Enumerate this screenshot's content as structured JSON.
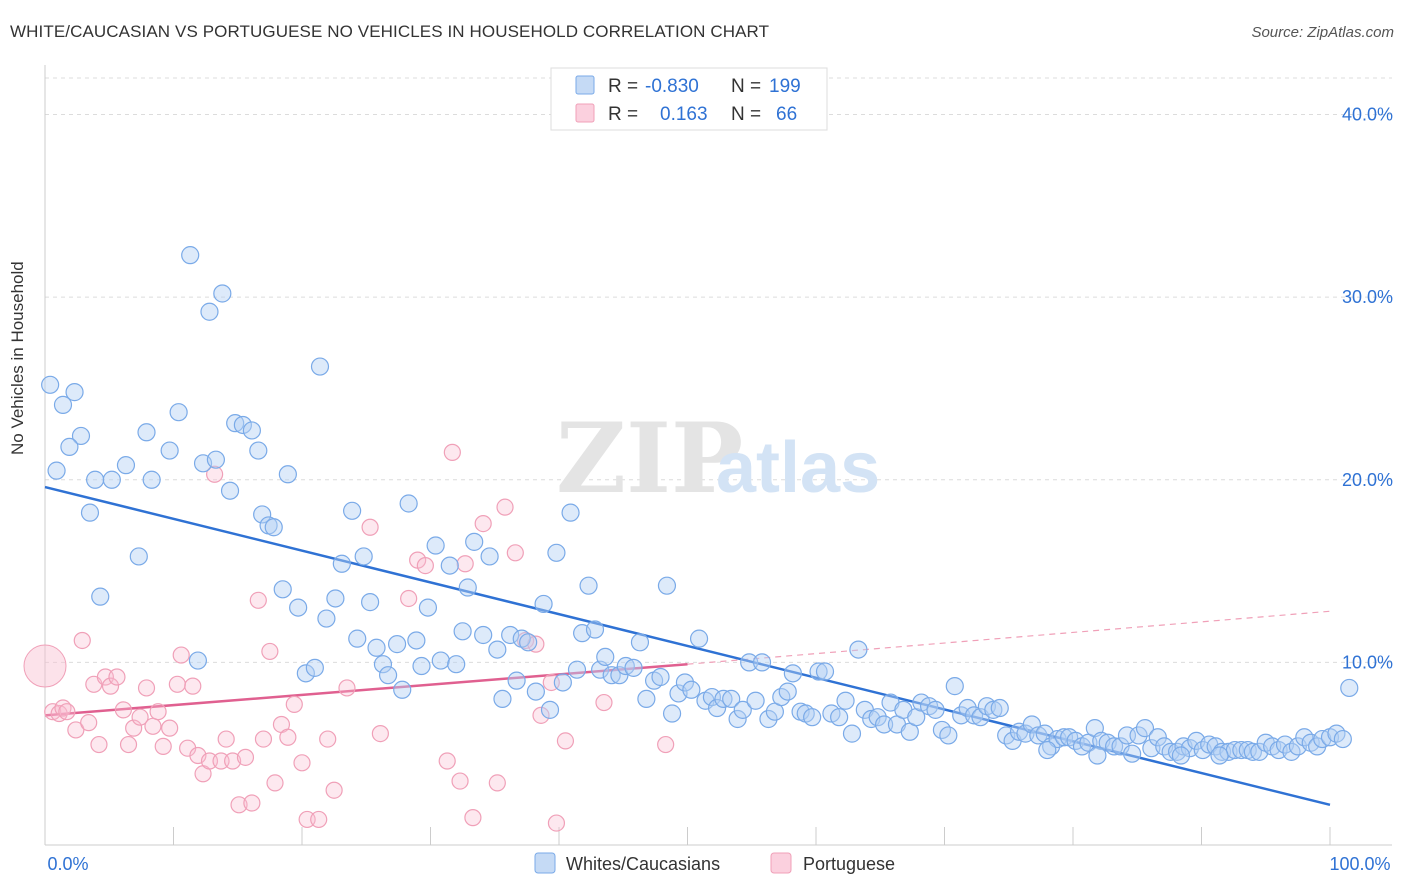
{
  "title": "WHITE/CAUCASIAN VS PORTUGUESE NO VEHICLES IN HOUSEHOLD CORRELATION CHART",
  "source": "Source: ZipAtlas.com",
  "watermark": {
    "zip": "ZIP",
    "atlas": "atlas"
  },
  "legend_top": [
    {
      "r_label": "R =",
      "r_value": "-0.830",
      "n_label": "N =",
      "n_value": "199",
      "color": "#7aaae8"
    },
    {
      "r_label": "R =",
      "r_value": "0.163",
      "n_label": "N =",
      "n_value": "66",
      "color": "#f0a0b8"
    }
  ],
  "legend_bottom": [
    {
      "label": "Whites/Caucasians",
      "color": "#7aaae8"
    },
    {
      "label": "Portuguese",
      "color": "#f0a0b8"
    }
  ],
  "chart_data": {
    "type": "scatter",
    "ylabel": "No Vehicles in Household",
    "xlim": [
      0,
      100
    ],
    "ylim": [
      0,
      42
    ],
    "x_tick_labels": [
      "0.0%",
      "100.0%"
    ],
    "y_ticks": [
      10,
      20,
      30,
      40
    ],
    "y_tick_labels": [
      "10.0%",
      "20.0%",
      "30.0%",
      "40.0%"
    ],
    "grid": true,
    "series": [
      {
        "name": "Whites/Caucasians",
        "color": "#7aaae8",
        "trend": {
          "x": [
            0,
            100
          ],
          "y": [
            19.6,
            2.2
          ],
          "color": "#2f72d4"
        },
        "points": [
          [
            0.4,
            25.2
          ],
          [
            1.4,
            24.1
          ],
          [
            2.3,
            24.8
          ],
          [
            2.8,
            22.4
          ],
          [
            1.9,
            21.8
          ],
          [
            0.9,
            20.5
          ],
          [
            3.9,
            20.0
          ],
          [
            5.2,
            20.0
          ],
          [
            3.5,
            18.2
          ],
          [
            4.3,
            13.6
          ],
          [
            7.3,
            15.8
          ],
          [
            6.3,
            20.8
          ],
          [
            7.9,
            22.6
          ],
          [
            8.3,
            20.0
          ],
          [
            9.7,
            21.6
          ],
          [
            10.4,
            23.7
          ],
          [
            11.3,
            32.3
          ],
          [
            11.9,
            10.1
          ],
          [
            12.3,
            20.9
          ],
          [
            12.8,
            29.2
          ],
          [
            13.3,
            21.1
          ],
          [
            13.8,
            30.2
          ],
          [
            14.4,
            19.4
          ],
          [
            14.8,
            23.1
          ],
          [
            15.4,
            23.0
          ],
          [
            16.1,
            22.7
          ],
          [
            16.6,
            21.6
          ],
          [
            16.9,
            18.1
          ],
          [
            17.4,
            17.5
          ],
          [
            17.8,
            17.4
          ],
          [
            18.5,
            14.0
          ],
          [
            18.9,
            20.3
          ],
          [
            19.7,
            13.0
          ],
          [
            20.3,
            9.4
          ],
          [
            21.0,
            9.7
          ],
          [
            21.4,
            26.2
          ],
          [
            21.9,
            12.4
          ],
          [
            22.6,
            13.5
          ],
          [
            23.1,
            15.4
          ],
          [
            23.9,
            18.3
          ],
          [
            24.3,
            11.3
          ],
          [
            24.8,
            15.8
          ],
          [
            25.3,
            13.3
          ],
          [
            25.8,
            10.8
          ],
          [
            26.3,
            9.9
          ],
          [
            26.7,
            9.3
          ],
          [
            27.4,
            11.0
          ],
          [
            27.8,
            8.5
          ],
          [
            28.3,
            18.7
          ],
          [
            28.9,
            11.2
          ],
          [
            29.3,
            9.8
          ],
          [
            29.8,
            13.0
          ],
          [
            30.4,
            16.4
          ],
          [
            30.8,
            10.1
          ],
          [
            31.5,
            15.3
          ],
          [
            32.0,
            9.9
          ],
          [
            32.5,
            11.7
          ],
          [
            32.9,
            14.1
          ],
          [
            33.4,
            16.6
          ],
          [
            34.1,
            11.5
          ],
          [
            34.6,
            15.8
          ],
          [
            35.2,
            10.7
          ],
          [
            35.6,
            8.0
          ],
          [
            36.2,
            11.5
          ],
          [
            36.7,
            9.0
          ],
          [
            37.1,
            11.3
          ],
          [
            37.6,
            11.1
          ],
          [
            38.2,
            8.4
          ],
          [
            38.8,
            13.2
          ],
          [
            39.3,
            7.4
          ],
          [
            39.8,
            16.0
          ],
          [
            40.3,
            8.9
          ],
          [
            40.9,
            18.2
          ],
          [
            41.4,
            9.6
          ],
          [
            41.8,
            11.6
          ],
          [
            42.3,
            14.2
          ],
          [
            42.8,
            11.8
          ],
          [
            43.2,
            9.6
          ],
          [
            43.6,
            10.3
          ],
          [
            44.1,
            9.3
          ],
          [
            44.7,
            9.3
          ],
          [
            45.2,
            9.8
          ],
          [
            45.8,
            9.7
          ],
          [
            46.3,
            11.1
          ],
          [
            46.8,
            8.0
          ],
          [
            47.4,
            9.0
          ],
          [
            47.9,
            9.2
          ],
          [
            48.4,
            14.2
          ],
          [
            48.8,
            7.2
          ],
          [
            49.3,
            8.3
          ],
          [
            49.8,
            8.9
          ],
          [
            50.3,
            8.5
          ],
          [
            50.9,
            11.3
          ],
          [
            51.4,
            7.9
          ],
          [
            51.9,
            8.1
          ],
          [
            52.3,
            7.5
          ],
          [
            52.8,
            8.0
          ],
          [
            53.4,
            8.0
          ],
          [
            53.9,
            6.9
          ],
          [
            54.3,
            7.4
          ],
          [
            54.8,
            10.0
          ],
          [
            55.3,
            7.9
          ],
          [
            55.8,
            10.0
          ],
          [
            56.3,
            6.9
          ],
          [
            56.8,
            7.3
          ],
          [
            57.3,
            8.1
          ],
          [
            57.8,
            8.4
          ],
          [
            58.2,
            9.4
          ],
          [
            58.8,
            7.3
          ],
          [
            59.2,
            7.2
          ],
          [
            59.7,
            7.0
          ],
          [
            60.2,
            9.5
          ],
          [
            60.7,
            9.5
          ],
          [
            61.2,
            7.2
          ],
          [
            61.8,
            7.0
          ],
          [
            62.3,
            7.9
          ],
          [
            62.8,
            6.1
          ],
          [
            63.3,
            10.7
          ],
          [
            63.8,
            7.4
          ],
          [
            64.3,
            6.9
          ],
          [
            64.8,
            7.0
          ],
          [
            65.3,
            6.6
          ],
          [
            65.8,
            7.8
          ],
          [
            66.3,
            6.6
          ],
          [
            66.8,
            7.4
          ],
          [
            67.3,
            6.2
          ],
          [
            67.8,
            7.0
          ],
          [
            68.2,
            7.8
          ],
          [
            68.8,
            7.6
          ],
          [
            69.3,
            7.4
          ],
          [
            69.8,
            6.3
          ],
          [
            70.3,
            6.0
          ],
          [
            70.8,
            8.7
          ],
          [
            71.3,
            7.1
          ],
          [
            71.8,
            7.5
          ],
          [
            72.3,
            7.1
          ],
          [
            72.8,
            7.0
          ],
          [
            73.3,
            7.6
          ],
          [
            73.8,
            7.4
          ],
          [
            74.3,
            7.5
          ],
          [
            74.8,
            6.0
          ],
          [
            75.3,
            5.7
          ],
          [
            75.8,
            6.2
          ],
          [
            76.3,
            6.1
          ],
          [
            76.8,
            6.6
          ],
          [
            77.3,
            6.0
          ],
          [
            77.8,
            6.1
          ],
          [
            78.3,
            5.4
          ],
          [
            78.8,
            5.8
          ],
          [
            79.3,
            5.9
          ],
          [
            79.7,
            5.9
          ],
          [
            80.2,
            5.7
          ],
          [
            80.7,
            5.4
          ],
          [
            81.2,
            5.6
          ],
          [
            81.7,
            6.4
          ],
          [
            82.2,
            5.7
          ],
          [
            82.7,
            5.6
          ],
          [
            83.2,
            5.4
          ],
          [
            83.7,
            5.4
          ],
          [
            84.2,
            6.0
          ],
          [
            84.6,
            5.0
          ],
          [
            85.1,
            6.0
          ],
          [
            85.6,
            6.4
          ],
          [
            86.1,
            5.3
          ],
          [
            86.6,
            5.9
          ],
          [
            87.1,
            5.4
          ],
          [
            87.6,
            5.1
          ],
          [
            88.1,
            5.1
          ],
          [
            88.6,
            5.4
          ],
          [
            89.1,
            5.3
          ],
          [
            89.6,
            5.7
          ],
          [
            90.1,
            5.2
          ],
          [
            90.6,
            5.5
          ],
          [
            91.1,
            5.4
          ],
          [
            91.6,
            5.1
          ],
          [
            92.1,
            5.1
          ],
          [
            92.6,
            5.2
          ],
          [
            93.1,
            5.2
          ],
          [
            93.6,
            5.2
          ],
          [
            94.0,
            5.1
          ],
          [
            94.5,
            5.1
          ],
          [
            95.0,
            5.6
          ],
          [
            95.5,
            5.4
          ],
          [
            96.0,
            5.2
          ],
          [
            96.5,
            5.5
          ],
          [
            97.0,
            5.1
          ],
          [
            97.5,
            5.4
          ],
          [
            98.0,
            5.9
          ],
          [
            98.5,
            5.6
          ],
          [
            99.0,
            5.4
          ],
          [
            99.4,
            5.8
          ],
          [
            100.0,
            5.9
          ],
          [
            100.5,
            6.1
          ],
          [
            101.0,
            5.8
          ],
          [
            101.5,
            8.6
          ],
          [
            78.0,
            5.2
          ],
          [
            81.9,
            4.9
          ],
          [
            88.4,
            4.9
          ],
          [
            91.4,
            4.9
          ]
        ]
      },
      {
        "name": "Portuguese",
        "color": "#f0a0b8",
        "trend": {
          "x": [
            0,
            50
          ],
          "y": [
            7.1,
            9.9
          ],
          "color": "#e06090",
          "dashed_extension": {
            "x": [
              50,
              100
            ],
            "y": [
              9.9,
              12.8
            ]
          }
        },
        "big_point": [
          0,
          9.8
        ],
        "points": [
          [
            0.6,
            7.3
          ],
          [
            1.1,
            7.2
          ],
          [
            1.4,
            7.5
          ],
          [
            1.7,
            7.3
          ],
          [
            2.4,
            6.3
          ],
          [
            2.9,
            11.2
          ],
          [
            3.4,
            6.7
          ],
          [
            3.8,
            8.8
          ],
          [
            4.2,
            5.5
          ],
          [
            4.7,
            9.2
          ],
          [
            5.1,
            8.7
          ],
          [
            5.6,
            9.2
          ],
          [
            6.1,
            7.4
          ],
          [
            6.5,
            5.5
          ],
          [
            6.9,
            6.4
          ],
          [
            7.4,
            7.0
          ],
          [
            7.9,
            8.6
          ],
          [
            8.4,
            6.5
          ],
          [
            8.8,
            7.3
          ],
          [
            9.2,
            5.4
          ],
          [
            9.7,
            6.4
          ],
          [
            10.3,
            8.8
          ],
          [
            10.6,
            10.4
          ],
          [
            11.1,
            5.3
          ],
          [
            11.5,
            8.7
          ],
          [
            11.9,
            4.9
          ],
          [
            12.3,
            3.9
          ],
          [
            12.8,
            4.6
          ],
          [
            13.2,
            20.3
          ],
          [
            13.7,
            4.6
          ],
          [
            14.1,
            5.8
          ],
          [
            14.6,
            4.6
          ],
          [
            15.1,
            2.2
          ],
          [
            15.6,
            4.8
          ],
          [
            16.1,
            2.3
          ],
          [
            16.6,
            13.4
          ],
          [
            17.0,
            5.8
          ],
          [
            17.5,
            10.6
          ],
          [
            17.9,
            3.4
          ],
          [
            18.4,
            6.6
          ],
          [
            18.9,
            5.9
          ],
          [
            19.4,
            7.7
          ],
          [
            20.0,
            4.5
          ],
          [
            20.4,
            1.4
          ],
          [
            21.3,
            1.4
          ],
          [
            22.0,
            5.8
          ],
          [
            22.5,
            3.0
          ],
          [
            23.5,
            8.6
          ],
          [
            25.3,
            17.4
          ],
          [
            26.1,
            6.1
          ],
          [
            28.3,
            13.5
          ],
          [
            29.0,
            15.6
          ],
          [
            29.6,
            15.3
          ],
          [
            31.3,
            4.6
          ],
          [
            31.7,
            21.5
          ],
          [
            32.3,
            3.5
          ],
          [
            32.7,
            15.4
          ],
          [
            33.3,
            1.5
          ],
          [
            34.1,
            17.6
          ],
          [
            35.2,
            3.4
          ],
          [
            35.8,
            18.5
          ],
          [
            36.6,
            16.0
          ],
          [
            37.4,
            11.2
          ],
          [
            38.2,
            11.0
          ],
          [
            38.6,
            7.1
          ],
          [
            39.4,
            8.9
          ],
          [
            39.8,
            1.2
          ],
          [
            40.5,
            5.7
          ],
          [
            43.5,
            7.8
          ],
          [
            48.3,
            5.5
          ]
        ]
      }
    ]
  }
}
